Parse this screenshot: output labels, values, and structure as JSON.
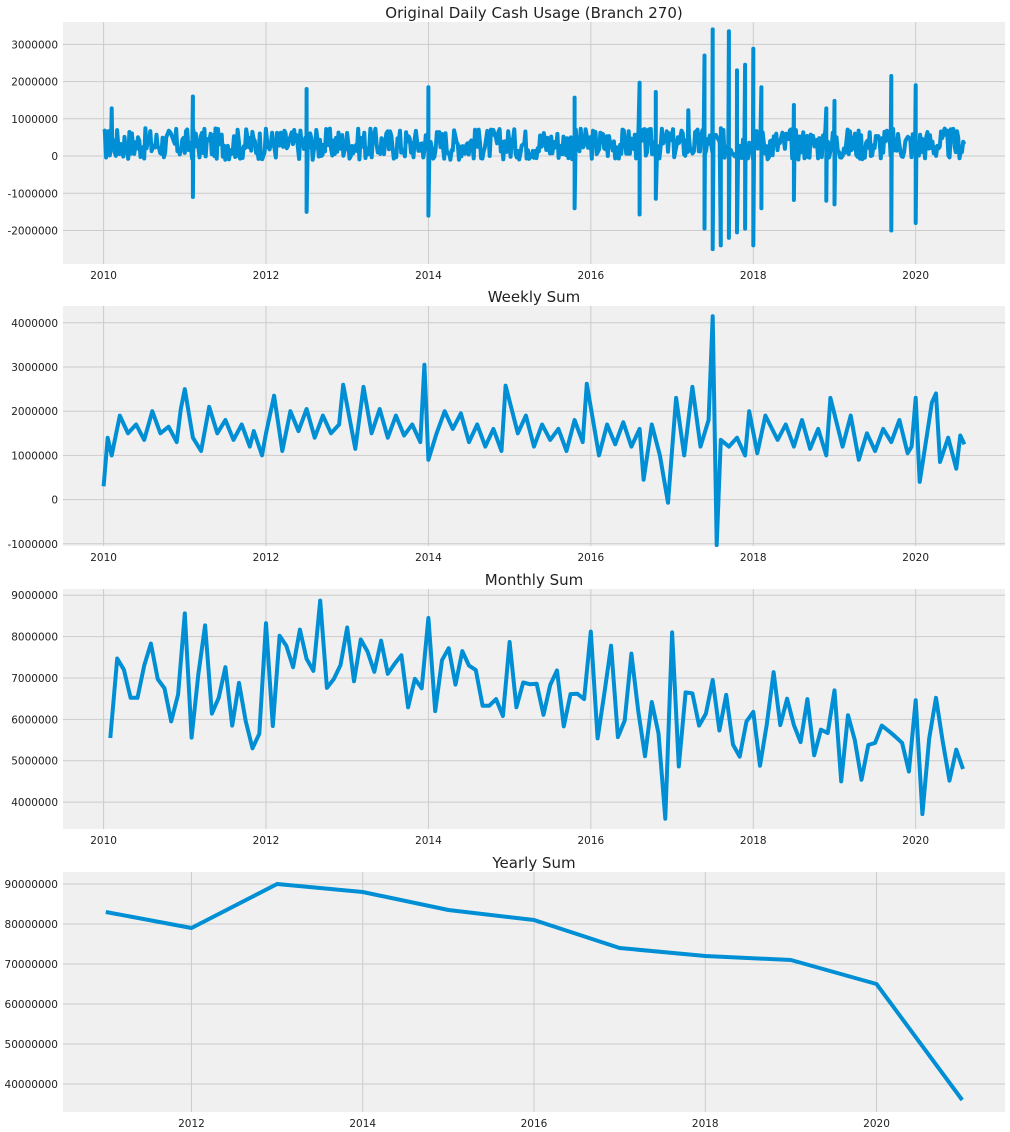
{
  "colors": {
    "line": "#008fd5",
    "panel": "#f0f0f0",
    "grid": "#cbcbcb"
  },
  "chart_data": [
    {
      "type": "line",
      "title": "Original Daily Cash Usage (Branch 270)",
      "xlabel": "",
      "ylabel": "",
      "xlim": [
        2009.5,
        2021.1
      ],
      "ylim": [
        -2900000,
        3600000
      ],
      "xticks": [
        2010,
        2012,
        2014,
        2016,
        2018,
        2020
      ],
      "yticks": [
        -2000000,
        -1000000,
        0,
        1000000,
        2000000,
        3000000
      ],
      "ytick_labels": [
        "-2000000",
        "-1000000",
        "0",
        "1000000",
        "2000000",
        "3000000"
      ],
      "grid": true,
      "series": [
        {
          "dense_band": {
            "x_range": [
              2010.0,
              2020.6
            ],
            "center": 300000,
            "low": -100000,
            "high": 750000
          },
          "spikes": [
            [
              2010.1,
              1280000
            ],
            [
              2011.1,
              1600000
            ],
            [
              2011.1,
              -1100000
            ],
            [
              2012.5,
              1800000
            ],
            [
              2012.5,
              -1500000
            ],
            [
              2014.0,
              1850000
            ],
            [
              2014.0,
              -1600000
            ],
            [
              2015.8,
              1570000
            ],
            [
              2015.8,
              -1400000
            ],
            [
              2016.6,
              1970000
            ],
            [
              2016.6,
              -1570000
            ],
            [
              2016.8,
              1720000
            ],
            [
              2016.8,
              -1150000
            ],
            [
              2017.2,
              1230000
            ],
            [
              2017.4,
              2700000
            ],
            [
              2017.4,
              -1950000
            ],
            [
              2017.5,
              3400000
            ],
            [
              2017.5,
              -2500000
            ],
            [
              2017.6,
              -2400000
            ],
            [
              2017.7,
              3350000
            ],
            [
              2017.7,
              -2200000
            ],
            [
              2017.8,
              2300000
            ],
            [
              2017.8,
              -2050000
            ],
            [
              2017.9,
              2450000
            ],
            [
              2017.9,
              -1950000
            ],
            [
              2018.0,
              2880000
            ],
            [
              2018.0,
              -2400000
            ],
            [
              2018.1,
              1850000
            ],
            [
              2018.1,
              -1400000
            ],
            [
              2018.5,
              1370000
            ],
            [
              2018.5,
              -1180000
            ],
            [
              2018.9,
              1280000
            ],
            [
              2018.9,
              -1200000
            ],
            [
              2019.0,
              1480000
            ],
            [
              2019.0,
              -1300000
            ],
            [
              2019.7,
              2150000
            ],
            [
              2019.7,
              -2000000
            ],
            [
              2020.0,
              1900000
            ],
            [
              2020.0,
              -1800000
            ]
          ]
        }
      ]
    },
    {
      "type": "line",
      "title": "Weekly Sum",
      "xlabel": "",
      "ylabel": "",
      "xlim": [
        2009.5,
        2021.1
      ],
      "ylim": [
        -1050000,
        4380000
      ],
      "xticks": [
        2010,
        2012,
        2014,
        2016,
        2018,
        2020
      ],
      "yticks": [
        -1000000,
        0,
        1000000,
        2000000,
        3000000,
        4000000
      ],
      "ytick_labels": [
        "-1000000",
        "0",
        "1000000",
        "2000000",
        "3000000",
        "4000000"
      ],
      "grid": true,
      "series": [
        {
          "x": [
            2010.0,
            2010.05,
            2010.1,
            2010.2,
            2010.3,
            2010.4,
            2010.5,
            2010.6,
            2010.7,
            2010.8,
            2010.9,
            2010.95,
            2011.0,
            2011.1,
            2011.2,
            2011.3,
            2011.4,
            2011.5,
            2011.6,
            2011.7,
            2011.8,
            2011.85,
            2011.95,
            2012.0,
            2012.1,
            2012.2,
            2012.3,
            2012.4,
            2012.5,
            2012.6,
            2012.7,
            2012.8,
            2012.9,
            2012.95,
            2013.1,
            2013.2,
            2013.3,
            2013.4,
            2013.5,
            2013.6,
            2013.7,
            2013.8,
            2013.9,
            2013.95,
            2014.0,
            2014.1,
            2014.2,
            2014.3,
            2014.4,
            2014.5,
            2014.6,
            2014.7,
            2014.8,
            2014.9,
            2014.95,
            2015.1,
            2015.2,
            2015.3,
            2015.4,
            2015.5,
            2015.6,
            2015.7,
            2015.8,
            2015.9,
            2015.95,
            2016.1,
            2016.2,
            2016.3,
            2016.4,
            2016.5,
            2016.6,
            2016.65,
            2016.75,
            2016.85,
            2016.95,
            2017.05,
            2017.15,
            2017.25,
            2017.35,
            2017.45,
            2017.5,
            2017.55,
            2017.6,
            2017.7,
            2017.8,
            2017.9,
            2017.95,
            2018.05,
            2018.15,
            2018.3,
            2018.4,
            2018.5,
            2018.6,
            2018.7,
            2018.8,
            2018.9,
            2018.95,
            2019.1,
            2019.2,
            2019.3,
            2019.4,
            2019.5,
            2019.6,
            2019.7,
            2019.8,
            2019.9,
            2019.95,
            2020.0,
            2020.05,
            2020.1,
            2020.2,
            2020.25,
            2020.3,
            2020.4,
            2020.5,
            2020.55,
            2020.6
          ],
          "y": [
            300000,
            1400000,
            1000000,
            1900000,
            1500000,
            1700000,
            1350000,
            2000000,
            1500000,
            1650000,
            1300000,
            2050000,
            2500000,
            1400000,
            1100000,
            2100000,
            1500000,
            1800000,
            1350000,
            1700000,
            1200000,
            1550000,
            1000000,
            1500000,
            2350000,
            1100000,
            2000000,
            1550000,
            2050000,
            1400000,
            1900000,
            1500000,
            1700000,
            2600000,
            1150000,
            2550000,
            1500000,
            2050000,
            1400000,
            1900000,
            1450000,
            1700000,
            1300000,
            3050000,
            900000,
            1500000,
            2000000,
            1600000,
            1950000,
            1300000,
            1700000,
            1200000,
            1600000,
            1100000,
            2580000,
            1500000,
            1900000,
            1200000,
            1700000,
            1350000,
            1600000,
            1100000,
            1800000,
            1300000,
            2620000,
            1000000,
            1700000,
            1250000,
            1750000,
            1200000,
            1600000,
            450000,
            1700000,
            1000000,
            -70000,
            2300000,
            1000000,
            2550000,
            1200000,
            1800000,
            4150000,
            -1030000,
            1350000,
            1200000,
            1400000,
            1000000,
            2000000,
            1050000,
            1900000,
            1350000,
            1700000,
            1200000,
            1800000,
            1150000,
            1600000,
            1000000,
            2300000,
            1200000,
            1900000,
            900000,
            1500000,
            1100000,
            1600000,
            1300000,
            1800000,
            1050000,
            1200000,
            2300000,
            400000,
            1000000,
            2200000,
            2400000,
            850000,
            1400000,
            700000,
            1450000,
            1250000
          ]
        }
      ]
    },
    {
      "type": "line",
      "title": "Monthly Sum",
      "xlabel": "",
      "ylabel": "",
      "xlim": [
        2009.5,
        2021.1
      ],
      "ylim": [
        3350000,
        9150000
      ],
      "xticks": [
        2010,
        2012,
        2014,
        2016,
        2018,
        2020
      ],
      "yticks": [
        4000000,
        5000000,
        6000000,
        7000000,
        8000000,
        9000000
      ],
      "ytick_labels": [
        "4000000",
        "5000000",
        "6000000",
        "7000000",
        "8000000",
        "9000000"
      ],
      "grid": true,
      "series": [
        {
          "x": [
            2010.083,
            2010.167,
            2010.25,
            2010.333,
            2010.417,
            2010.5,
            2010.583,
            2010.667,
            2010.75,
            2010.833,
            2010.917,
            2011.0,
            2011.083,
            2011.167,
            2011.25,
            2011.333,
            2011.417,
            2011.5,
            2011.583,
            2011.667,
            2011.75,
            2011.833,
            2011.917,
            2012.0,
            2012.083,
            2012.167,
            2012.25,
            2012.333,
            2012.417,
            2012.5,
            2012.583,
            2012.667,
            2012.75,
            2012.833,
            2012.917,
            2013.0,
            2013.083,
            2013.167,
            2013.25,
            2013.333,
            2013.417,
            2013.5,
            2013.583,
            2013.667,
            2013.75,
            2013.833,
            2013.917,
            2014.0,
            2014.083,
            2014.167,
            2014.25,
            2014.333,
            2014.417,
            2014.5,
            2014.583,
            2014.667,
            2014.75,
            2014.833,
            2014.917,
            2015.0,
            2015.083,
            2015.167,
            2015.25,
            2015.333,
            2015.417,
            2015.5,
            2015.583,
            2015.667,
            2015.75,
            2015.833,
            2015.917,
            2016.0,
            2016.083,
            2016.167,
            2016.25,
            2016.333,
            2016.417,
            2016.5,
            2016.583,
            2016.667,
            2016.75,
            2016.833,
            2016.917,
            2017.0,
            2017.083,
            2017.167,
            2017.25,
            2017.333,
            2017.417,
            2017.5,
            2017.583,
            2017.667,
            2017.75,
            2017.833,
            2017.917,
            2018.0,
            2018.083,
            2018.167,
            2018.25,
            2018.333,
            2018.417,
            2018.5,
            2018.583,
            2018.667,
            2018.75,
            2018.833,
            2018.917,
            2019.0,
            2019.083,
            2019.167,
            2019.25,
            2019.333,
            2019.417,
            2019.5,
            2019.583,
            2019.667,
            2019.75,
            2019.833,
            2019.917,
            2020.0,
            2020.083,
            2020.167,
            2020.25,
            2020.333,
            2020.417,
            2020.5,
            2020.583
          ],
          "y": [
            5550000,
            7470000,
            7200000,
            6520000,
            6520000,
            7300000,
            7830000,
            6970000,
            6750000,
            5950000,
            6600000,
            8560000,
            5560000,
            7100000,
            8270000,
            6140000,
            6520000,
            7260000,
            5850000,
            6880000,
            5960000,
            5300000,
            5650000,
            8320000,
            5840000,
            8020000,
            7780000,
            7260000,
            8170000,
            7460000,
            7170000,
            8870000,
            6760000,
            6970000,
            7310000,
            8220000,
            6920000,
            7930000,
            7640000,
            7150000,
            7900000,
            7100000,
            7340000,
            7550000,
            6290000,
            6980000,
            6750000,
            8450000,
            6200000,
            7430000,
            7720000,
            6840000,
            7650000,
            7300000,
            7190000,
            6330000,
            6330000,
            6490000,
            6080000,
            7870000,
            6290000,
            6890000,
            6850000,
            6860000,
            6110000,
            6830000,
            7180000,
            5830000,
            6610000,
            6620000,
            6490000,
            8120000,
            5540000,
            6640000,
            7780000,
            5570000,
            5970000,
            7590000,
            6210000,
            5110000,
            6420000,
            5660000,
            3600000,
            8100000,
            4860000,
            6650000,
            6630000,
            5850000,
            6140000,
            6950000,
            5730000,
            6590000,
            5390000,
            5100000,
            5950000,
            6180000,
            4880000,
            5880000,
            7140000,
            5860000,
            6500000,
            5860000,
            5450000,
            6490000,
            5130000,
            5750000,
            5670000,
            6700000,
            4500000,
            6100000,
            5500000,
            4540000,
            5380000,
            5430000,
            5850000,
            5720000,
            5580000,
            5430000,
            4740000,
            6460000,
            3710000,
            5540000,
            6520000,
            5470000,
            4520000,
            5270000,
            4800000
          ]
        }
      ]
    },
    {
      "type": "line",
      "title": "Yearly Sum",
      "xlabel": "",
      "ylabel": "",
      "xlim": [
        2010.5,
        2021.5
      ],
      "ylim": [
        33000000,
        93000000
      ],
      "xticks": [
        2012,
        2014,
        2016,
        2018,
        2020
      ],
      "yticks": [
        40000000,
        50000000,
        60000000,
        70000000,
        80000000,
        90000000
      ],
      "ytick_labels": [
        "40000000",
        "50000000",
        "60000000",
        "70000000",
        "80000000",
        "90000000"
      ],
      "grid": true,
      "series": [
        {
          "x": [
            2011,
            2012,
            2013,
            2014,
            2015,
            2016,
            2017,
            2018,
            2019,
            2020,
            2021
          ],
          "y": [
            83000000,
            79000000,
            90000000,
            88000000,
            83500000,
            81000000,
            74000000,
            72000000,
            71000000,
            65000000,
            36000000
          ]
        }
      ]
    }
  ]
}
